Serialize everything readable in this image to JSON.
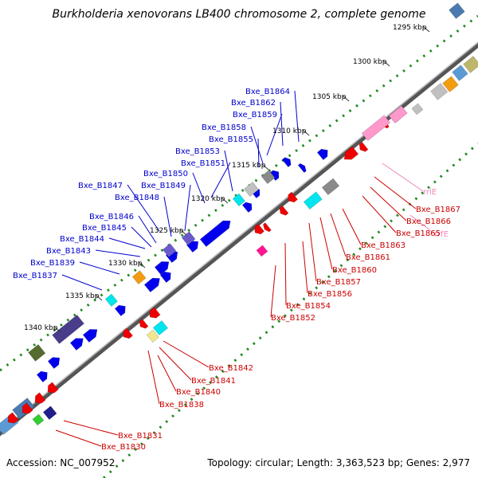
{
  "title": "Burkholderia xenovorans LB400 chromosome 2, complete genome",
  "accession": "Accession: NC_007952",
  "summary": "Topology: circular; Length: 3,363,523 bp; Genes: 2,977",
  "colors": {
    "forward_gene": "#0000ee",
    "reverse_gene": "#ee0000",
    "forward_label": "#0000cc",
    "reverse_label": "#cc0000",
    "rrna_label": "#ee88bb",
    "rrna_gene": "#ff99cc",
    "backbone": "#777777",
    "tick_dots": "#228b22",
    "cog_colors": [
      "#4a7ab0",
      "#5b9bd5",
      "#8a8a8a",
      "#c0c0c0",
      "#f39c12",
      "#bdb76b",
      "#2e8b57",
      "#00e5ee",
      "#6a5acd",
      "#483d8b",
      "#556b2f",
      "#ff69b4",
      "#ffffff"
    ]
  },
  "ticks": [
    {
      "label": "1295 kbp"
    },
    {
      "label": "1300 kbp"
    },
    {
      "label": "1305 kbp"
    },
    {
      "label": "1310 kbp"
    },
    {
      "label": "1315 kbp"
    },
    {
      "label": "1320 kbp"
    },
    {
      "label": "1325 kbp"
    },
    {
      "label": "1330 kbp"
    },
    {
      "label": "1335 kbp"
    },
    {
      "label": "1340 kbp"
    }
  ],
  "forward_labels": [
    {
      "text": "Bxe_B1864"
    },
    {
      "text": "Bxe_B1862"
    },
    {
      "text": "Bxe_B1859"
    },
    {
      "text": "Bxe_B1858"
    },
    {
      "text": "Bxe_B1855"
    },
    {
      "text": "Bxe_B1853"
    },
    {
      "text": "Bxe_B1851"
    },
    {
      "text": "Bxe_B1850"
    },
    {
      "text": "Bxe_B1849"
    },
    {
      "text": "Bxe_B1847"
    },
    {
      "text": "Bxe_B1848"
    },
    {
      "text": "Bxe_B1846"
    },
    {
      "text": "Bxe_B1845"
    },
    {
      "text": "Bxe_B1844"
    },
    {
      "text": "Bxe_B1843"
    },
    {
      "text": "Bxe_B1839"
    },
    {
      "text": "Bxe_B1837"
    }
  ],
  "reverse_labels": [
    {
      "text": "rrlE"
    },
    {
      "text": "Bxe_B1867"
    },
    {
      "text": "Bxe_B1866"
    },
    {
      "text": "rrfE"
    },
    {
      "text": "Bxe_B1865"
    },
    {
      "text": "Bxe_B1863"
    },
    {
      "text": "Bxe_B1861"
    },
    {
      "text": "Bxe_B1860"
    },
    {
      "text": "Bxe_B1857"
    },
    {
      "text": "Bxe_B1856"
    },
    {
      "text": "Bxe_B1854"
    },
    {
      "text": "Bxe_B1852"
    },
    {
      "text": "Bxe_B1842"
    },
    {
      "text": "Bxe_B1841"
    },
    {
      "text": "Bxe_B1840"
    },
    {
      "text": "Bxe_B1838"
    },
    {
      "text": "Bxe_B1831"
    },
    {
      "text": "Bxe_B1830"
    }
  ]
}
